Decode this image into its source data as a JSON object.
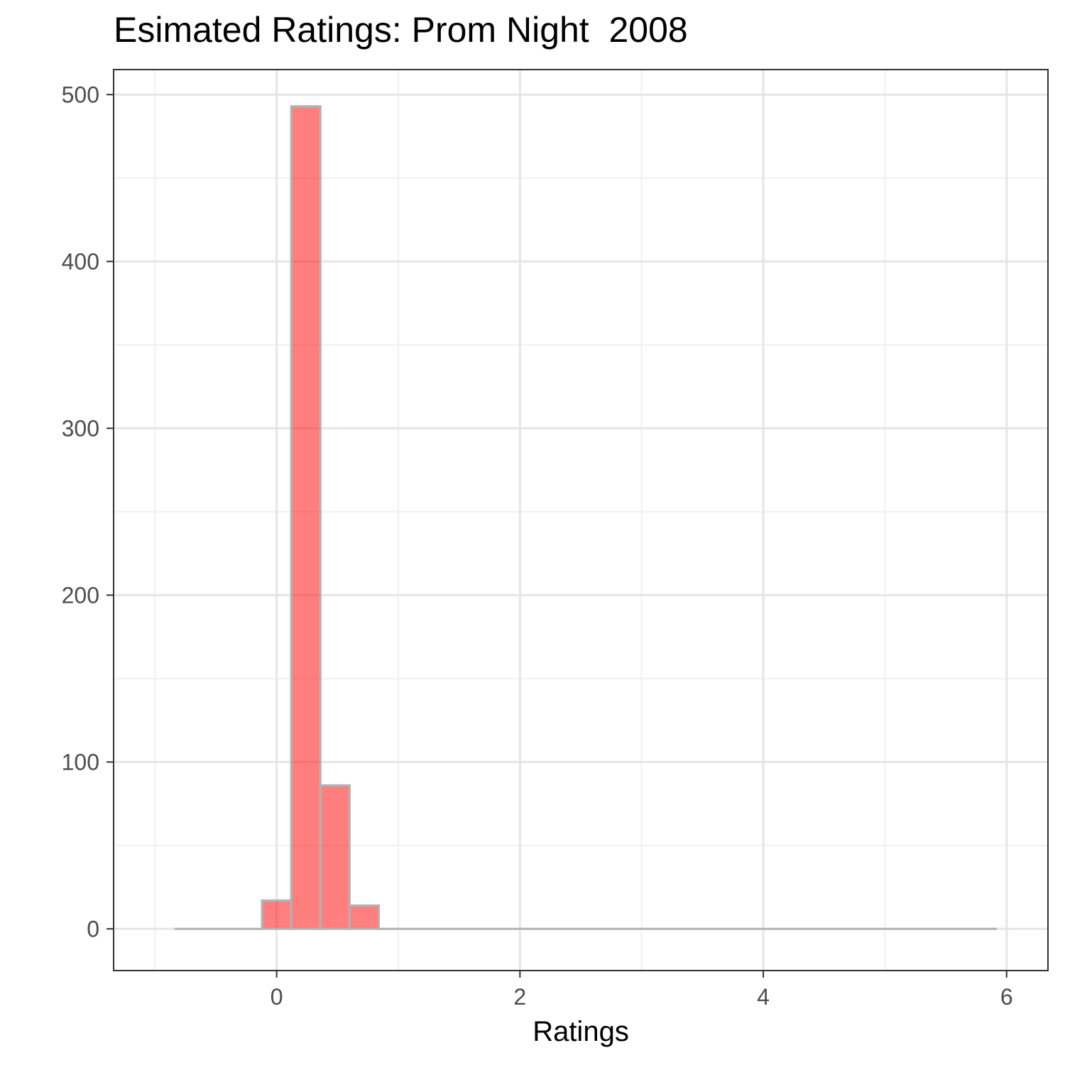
{
  "chart_data": {
    "type": "histogram",
    "title": "Esimated Ratings: Prom Night  2008",
    "xlabel": "Ratings",
    "ylabel": "",
    "xlim": [
      -1.34,
      6.34
    ],
    "ylim": [
      -25.0,
      515.0
    ],
    "x_ticks": [
      0,
      2,
      4,
      6
    ],
    "x_tick_labels": [
      "0",
      "2",
      "4",
      "6"
    ],
    "y_ticks": [
      0,
      100,
      200,
      300,
      400,
      500
    ],
    "y_tick_labels": [
      "0",
      "100",
      "200",
      "300",
      "400",
      "500"
    ],
    "bin_width": 0.24,
    "bins": [
      {
        "x0": -0.84,
        "x1": -0.6,
        "count": 0
      },
      {
        "x0": -0.6,
        "x1": -0.36,
        "count": 0
      },
      {
        "x0": -0.36,
        "x1": -0.12,
        "count": 0
      },
      {
        "x0": -0.12,
        "x1": 0.12,
        "count": 17
      },
      {
        "x0": 0.12,
        "x1": 0.36,
        "count": 493
      },
      {
        "x0": 0.36,
        "x1": 0.6,
        "count": 86
      },
      {
        "x0": 0.6,
        "x1": 0.84,
        "count": 14
      },
      {
        "x0": 0.84,
        "x1": 1.08,
        "count": 0
      },
      {
        "x0": 1.08,
        "x1": 1.32,
        "count": 0
      },
      {
        "x0": 1.32,
        "x1": 1.56,
        "count": 0
      },
      {
        "x0": 1.56,
        "x1": 1.8,
        "count": 0
      },
      {
        "x0": 1.8,
        "x1": 2.04,
        "count": 0
      },
      {
        "x0": 2.04,
        "x1": 2.28,
        "count": 0
      },
      {
        "x0": 2.28,
        "x1": 2.52,
        "count": 0
      },
      {
        "x0": 2.52,
        "x1": 2.76,
        "count": 0
      },
      {
        "x0": 2.76,
        "x1": 3.0,
        "count": 0
      },
      {
        "x0": 3.0,
        "x1": 3.24,
        "count": 0
      },
      {
        "x0": 3.24,
        "x1": 3.48,
        "count": 0
      },
      {
        "x0": 3.48,
        "x1": 3.72,
        "count": 0
      },
      {
        "x0": 3.72,
        "x1": 3.96,
        "count": 0
      },
      {
        "x0": 3.96,
        "x1": 4.2,
        "count": 0
      },
      {
        "x0": 4.2,
        "x1": 4.44,
        "count": 0
      },
      {
        "x0": 4.44,
        "x1": 4.68,
        "count": 0
      },
      {
        "x0": 4.68,
        "x1": 4.92,
        "count": 0
      },
      {
        "x0": 4.92,
        "x1": 5.16,
        "count": 0
      },
      {
        "x0": 5.16,
        "x1": 5.4,
        "count": 0
      },
      {
        "x0": 5.4,
        "x1": 5.64,
        "count": 0
      },
      {
        "x0": 5.64,
        "x1": 5.88,
        "count": 0
      },
      {
        "x0": 5.88,
        "x1": 5.92,
        "count": 0
      }
    ],
    "grid": true,
    "legend": "none",
    "colors": {
      "bar_fill": "#ff0000",
      "bar_fill_opacity": 0.5,
      "bar_outline": "#b3b3b3",
      "grid_major": "#e5e5e5",
      "grid_minor": "#f0f0f0",
      "panel_border": "#333333",
      "tick_text": "#4d4d4d",
      "tick_mark": "#333333"
    }
  }
}
